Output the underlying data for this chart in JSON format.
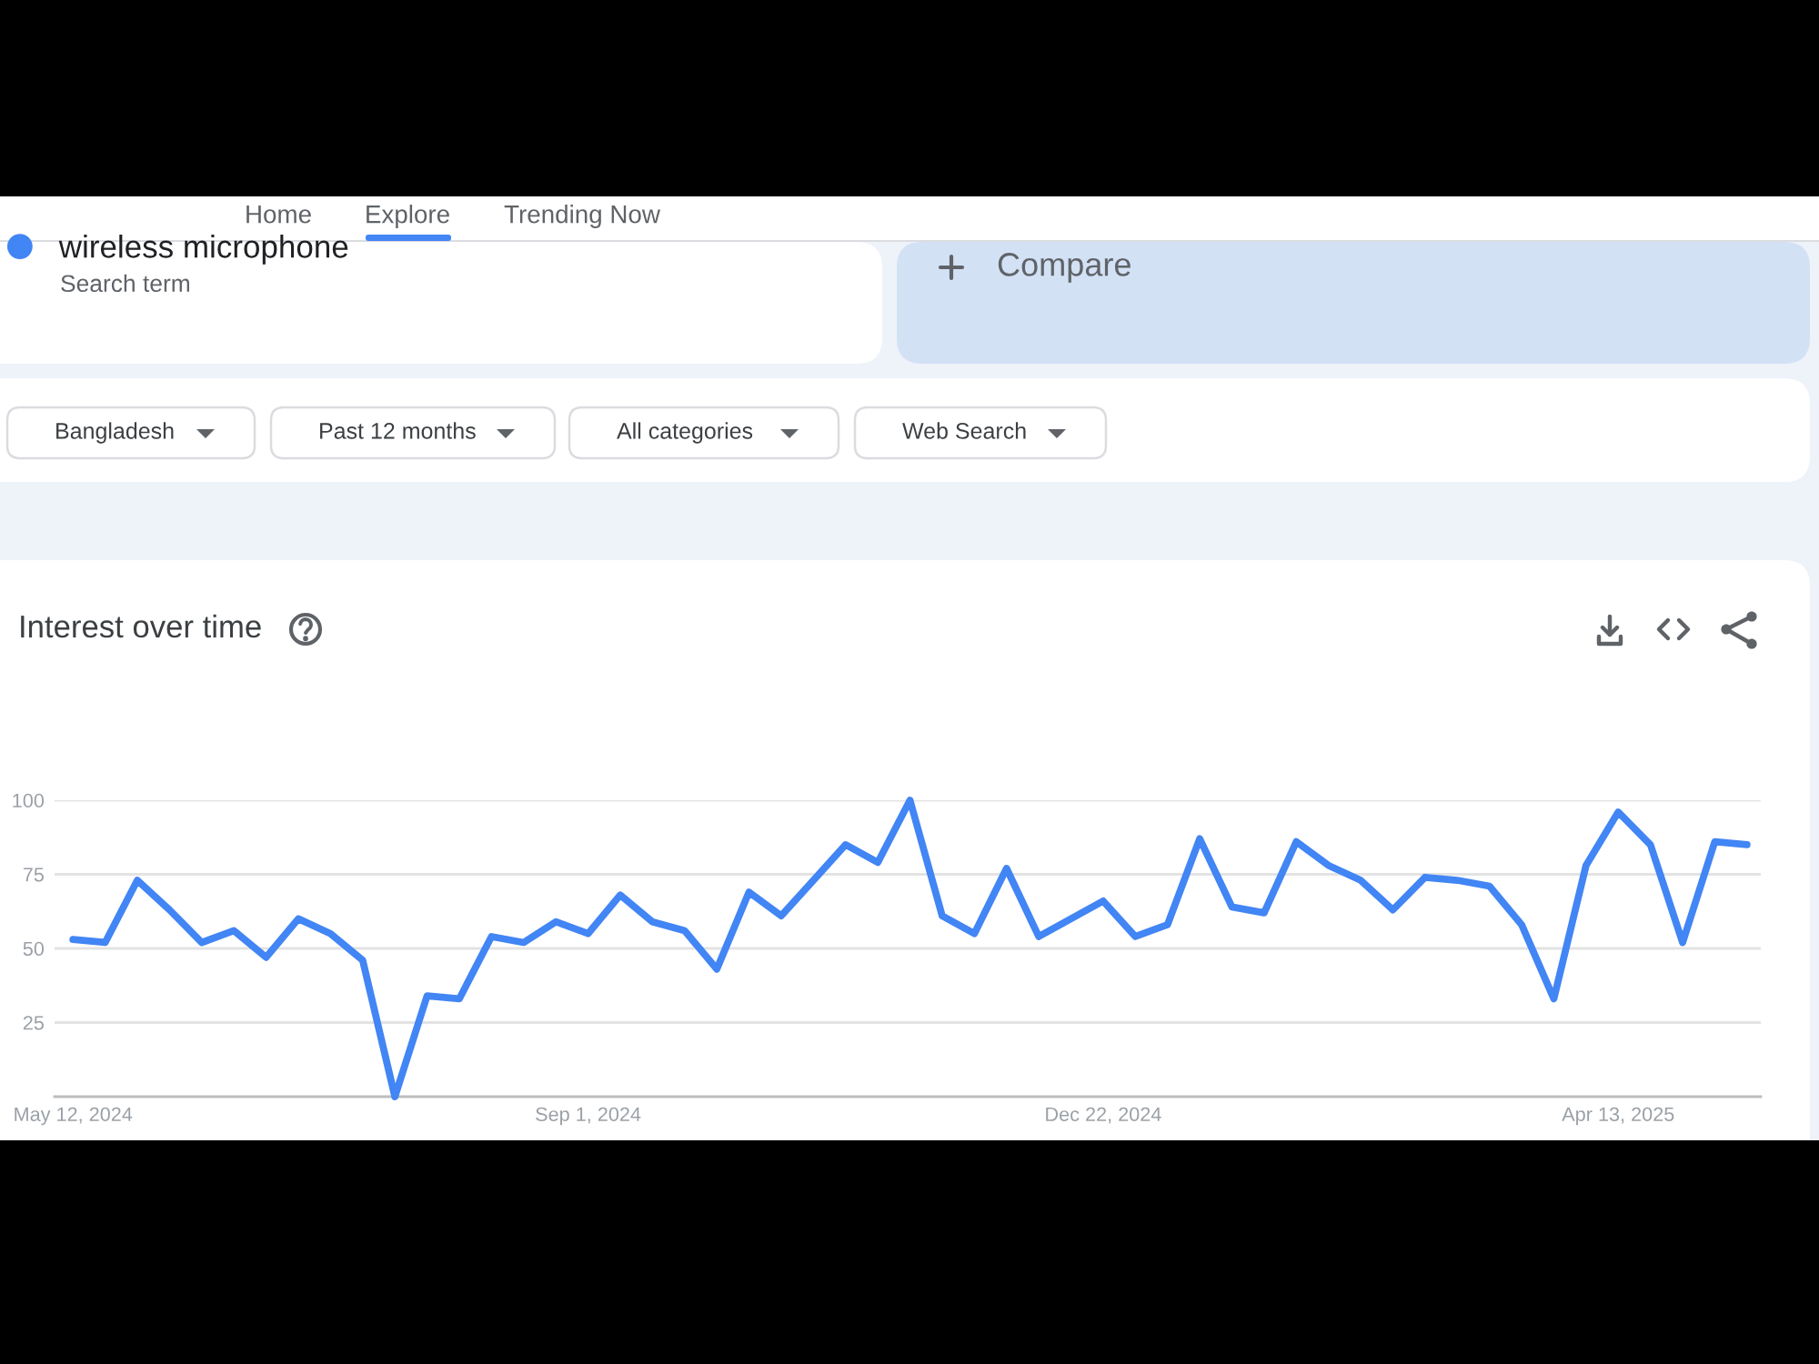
{
  "chart_data": {
    "type": "line",
    "title": "Interest over time",
    "x": [
      "2024-05-12",
      "2024-05-19",
      "2024-05-26",
      "2024-06-02",
      "2024-06-09",
      "2024-06-16",
      "2024-06-23",
      "2024-06-30",
      "2024-07-07",
      "2024-07-14",
      "2024-07-21",
      "2024-07-28",
      "2024-08-04",
      "2024-08-11",
      "2024-08-18",
      "2024-08-25",
      "2024-09-01",
      "2024-09-08",
      "2024-09-15",
      "2024-09-22",
      "2024-09-29",
      "2024-10-06",
      "2024-10-13",
      "2024-10-20",
      "2024-10-27",
      "2024-11-03",
      "2024-11-10",
      "2024-11-17",
      "2024-11-24",
      "2024-12-01",
      "2024-12-08",
      "2024-12-15",
      "2024-12-22",
      "2024-12-29",
      "2025-01-05",
      "2025-01-12",
      "2025-01-19",
      "2025-01-26",
      "2025-02-02",
      "2025-02-09",
      "2025-02-16",
      "2025-02-23",
      "2025-03-02",
      "2025-03-09",
      "2025-03-16",
      "2025-03-23",
      "2025-03-30",
      "2025-04-06",
      "2025-04-13",
      "2025-04-20",
      "2025-04-27",
      "2025-05-04",
      "2025-05-11"
    ],
    "series": [
      {
        "name": "wireless microphone",
        "color": "#4285f4",
        "values": [
          53,
          52,
          73,
          63,
          52,
          56,
          47,
          60,
          55,
          46,
          0,
          34,
          33,
          54,
          52,
          59,
          55,
          68,
          59,
          56,
          43,
          69,
          61,
          73,
          85,
          79,
          100,
          61,
          55,
          77,
          54,
          60,
          66,
          54,
          58,
          87,
          64,
          62,
          86,
          78,
          73,
          63,
          74,
          73,
          71,
          58,
          33,
          78,
          96,
          85,
          52,
          86,
          85
        ]
      }
    ],
    "xlim": [
      "2024-05-08",
      "2025-05-14"
    ],
    "xticks": [
      {
        "value": "2024-05-12",
        "label": "May 12, 2024"
      },
      {
        "value": "2024-09-01",
        "label": "Sep 1, 2024"
      },
      {
        "value": "2024-12-22",
        "label": "Dec 22, 2024"
      },
      {
        "value": "2025-04-13",
        "label": "Apr 13, 2025"
      }
    ],
    "ylim": [
      0,
      100
    ],
    "yticks": [
      25,
      50,
      75,
      100
    ],
    "grid": "y",
    "legend": "top left",
    "line_style": "solid",
    "annotations": [
      "Search term",
      "Compare",
      "Bangladesh",
      "Past 12 months",
      "All categories",
      "Web Search",
      "Home",
      "Explore",
      "Trending Now"
    ]
  }
}
